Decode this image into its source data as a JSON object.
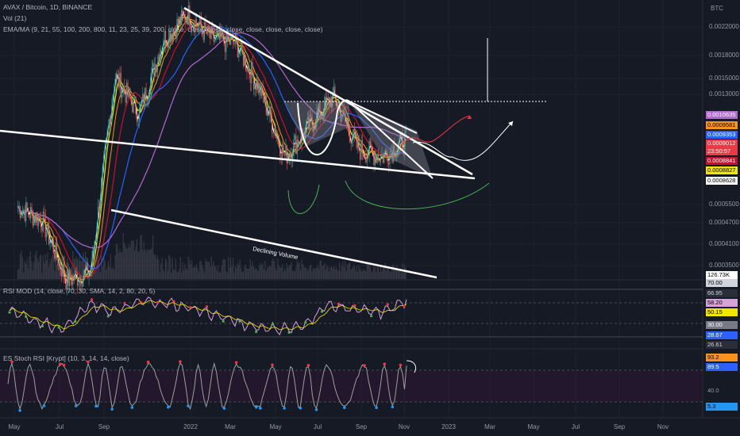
{
  "header": {
    "symbol_line": "AVAX / Bitcoin, 1D, BINANCE",
    "vol_line": "Vol (21)",
    "ema_line": "EMA/MA (9, 21, 55, 100, 200, 800, 11, 23, 25, 39, 200, close, close, close, close, close, close, close, close)",
    "rsi_line": "RSI MOD (14, close, 70, 30, SMA, 14, 2, 80, 20, 5)",
    "stoch_line": "ES Stoch RSI [Krypt] (10, 3, 14, 14, close)"
  },
  "price_axis": {
    "currency": "BTC",
    "ticks": [
      "0.0022000",
      "0.0018000",
      "0.0015000",
      "0.0013000",
      "0.0005500",
      "0.0004700",
      "0.0004100",
      "0.0003500"
    ]
  },
  "price_tags": [
    {
      "text": "0.0010635",
      "bg": "#b667d6",
      "fg": "#ffffff"
    },
    {
      "text": "0.0009581",
      "bg": "#f7931a",
      "fg": "#000000"
    },
    {
      "text": "0.0009353",
      "bg": "#2962ff",
      "fg": "#ffffff"
    },
    {
      "text": "0.0009012",
      "bg": "#f23645",
      "fg": "#ffffff"
    },
    {
      "text": "23:50:57",
      "bg": "#f23645",
      "fg": "#ffffff"
    },
    {
      "text": "0.0008841",
      "bg": "#c8102e",
      "fg": "#ffffff"
    },
    {
      "text": "0.0008827",
      "bg": "#f5e400",
      "fg": "#000000"
    },
    {
      "text": "0.0008628",
      "bg": "#ffffff",
      "fg": "#000000"
    }
  ],
  "volume_tag": {
    "text": "126.73K",
    "bg": "#ffffff",
    "fg": "#000000"
  },
  "rsi_axis": {
    "tags": [
      {
        "text": "70.00",
        "bg": "#d1d4dc",
        "fg": "#000000"
      },
      {
        "text": "66.95",
        "bg": "#2a2e39",
        "fg": "#d1d4dc"
      },
      {
        "text": "58.20",
        "bg": "#d6a3d9",
        "fg": "#000000"
      },
      {
        "text": "50.15",
        "bg": "#f5e400",
        "fg": "#000000"
      },
      {
        "text": "30.00",
        "bg": "#787b86",
        "fg": "#ffffff"
      },
      {
        "text": "28.67",
        "bg": "#2962ff",
        "fg": "#ffffff"
      },
      {
        "text": "26.61",
        "bg": "#2a2e39",
        "fg": "#d1d4dc"
      }
    ]
  },
  "stoch_axis": {
    "tags": [
      {
        "text": "93.2",
        "bg": "#f7931a",
        "fg": "#000000"
      },
      {
        "text": "89.5",
        "bg": "#2962ff",
        "fg": "#ffffff"
      },
      {
        "text": "40.0",
        "bg": "transparent",
        "fg": "#9598a1"
      },
      {
        "text": "5.3",
        "bg": "#2196f3",
        "fg": "#000000"
      }
    ]
  },
  "x_axis": {
    "labels": [
      "May",
      "Jul",
      "Sep",
      "2022",
      "Mar",
      "May",
      "Jul",
      "Sep",
      "Nov",
      "2023",
      "Mar",
      "May",
      "Jul",
      "Sep",
      "Nov"
    ]
  },
  "annotations": {
    "declining_volume": "Declining Volume"
  },
  "chart_data": [
    {
      "type": "line",
      "title": "AVAX / Bitcoin, 1D, BINANCE",
      "ylabel": "BTC",
      "log_scale": true,
      "x": [
        "2021-05",
        "2021-06",
        "2021-07",
        "2021-08",
        "2021-09",
        "2021-10",
        "2021-11",
        "2022-01",
        "2022-02",
        "2022-04",
        "2022-05",
        "2022-06",
        "2022-07",
        "2022-08",
        "2022-09",
        "2022-10",
        "2022-11"
      ],
      "series": [
        {
          "name": "price",
          "values": [
            0.00055,
            0.0005,
            0.00032,
            0.00034,
            0.00145,
            0.0011,
            0.0019,
            0.0023,
            0.0019,
            0.00185,
            0.0013,
            0.0008,
            0.001,
            0.00125,
            0.00085,
            0.0008,
            0.0009
          ]
        }
      ],
      "ylim": [
        0.00033,
        0.0024
      ],
      "grid": true
    },
    {
      "type": "line",
      "title": "RSI MOD",
      "ylim": [
        20,
        80
      ],
      "series": [
        {
          "name": "RSI",
          "values": [
            55,
            40,
            30,
            60,
            52,
            65,
            62,
            55,
            45,
            35,
            30,
            32,
            60,
            55,
            50,
            66
          ]
        }
      ]
    },
    {
      "type": "line",
      "title": "ES Stoch RSI [Krypt]",
      "ylim": [
        0,
        100
      ],
      "series": [
        {
          "name": "Stoch",
          "values": [
            20,
            80,
            10,
            90,
            15,
            85,
            10,
            90,
            20,
            95,
            5,
            90,
            10,
            80,
            15,
            93
          ]
        }
      ]
    }
  ]
}
